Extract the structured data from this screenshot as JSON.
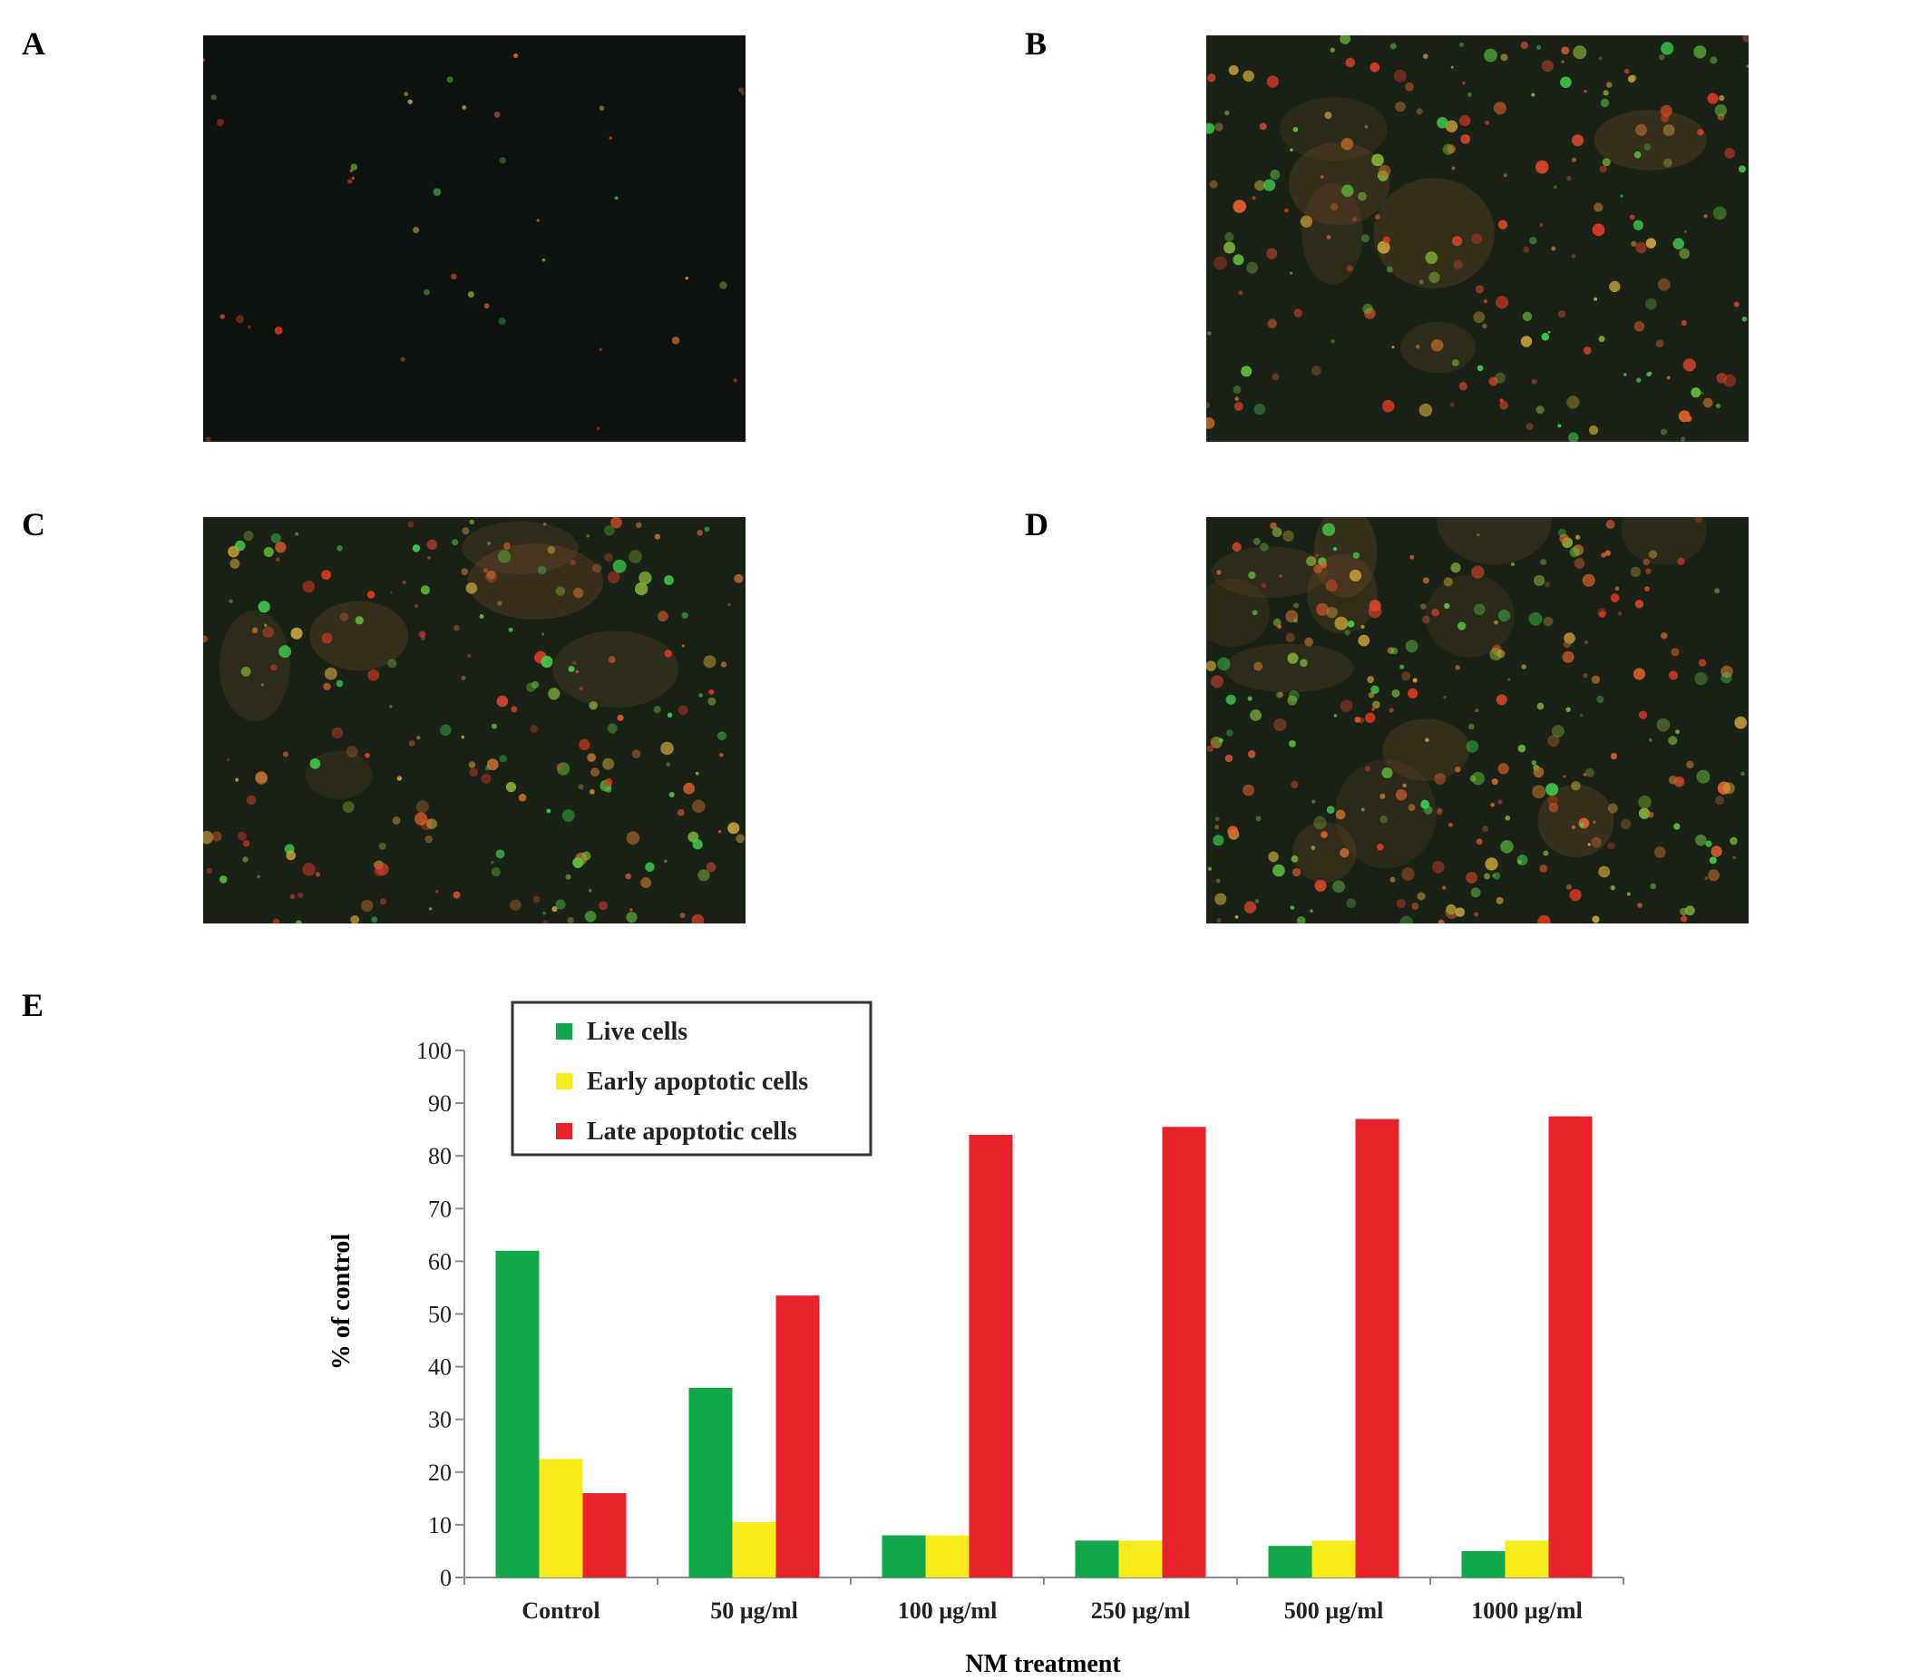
{
  "panels": {
    "A": {
      "letter": "A"
    },
    "B": {
      "letter": "B"
    },
    "C": {
      "letter": "C"
    },
    "D": {
      "letter": "D"
    },
    "E": {
      "letter": "E"
    }
  },
  "colors": {
    "live": "#12a84a",
    "early": "#f7ec1a",
    "late": "#e8222a",
    "micrograph_bg": "#0e120e"
  },
  "chart_data": {
    "type": "bar",
    "title": "",
    "xlabel": "NM treatment",
    "ylabel": "% of control",
    "ylim": [
      0,
      100
    ],
    "yticks": [
      0,
      10,
      20,
      30,
      40,
      50,
      60,
      70,
      80,
      90,
      100
    ],
    "grid": false,
    "legend_position": "top-left",
    "categories": [
      "Control",
      "50 µg/ml",
      "100 µg/ml",
      "250 µg/ml",
      "500 µg/ml",
      "1000 µg/ml"
    ],
    "series": [
      {
        "name": "Live cells",
        "color": "#12a84a",
        "values": [
          62,
          36,
          8,
          7,
          6,
          5
        ]
      },
      {
        "name": "Early apoptotic cells",
        "color": "#f7ec1a",
        "values": [
          22.5,
          10.5,
          8,
          7,
          7,
          7
        ]
      },
      {
        "name": "Late apoptotic cells",
        "color": "#e8222a",
        "values": [
          16,
          53.5,
          84,
          85.5,
          87,
          87.5
        ]
      }
    ]
  }
}
